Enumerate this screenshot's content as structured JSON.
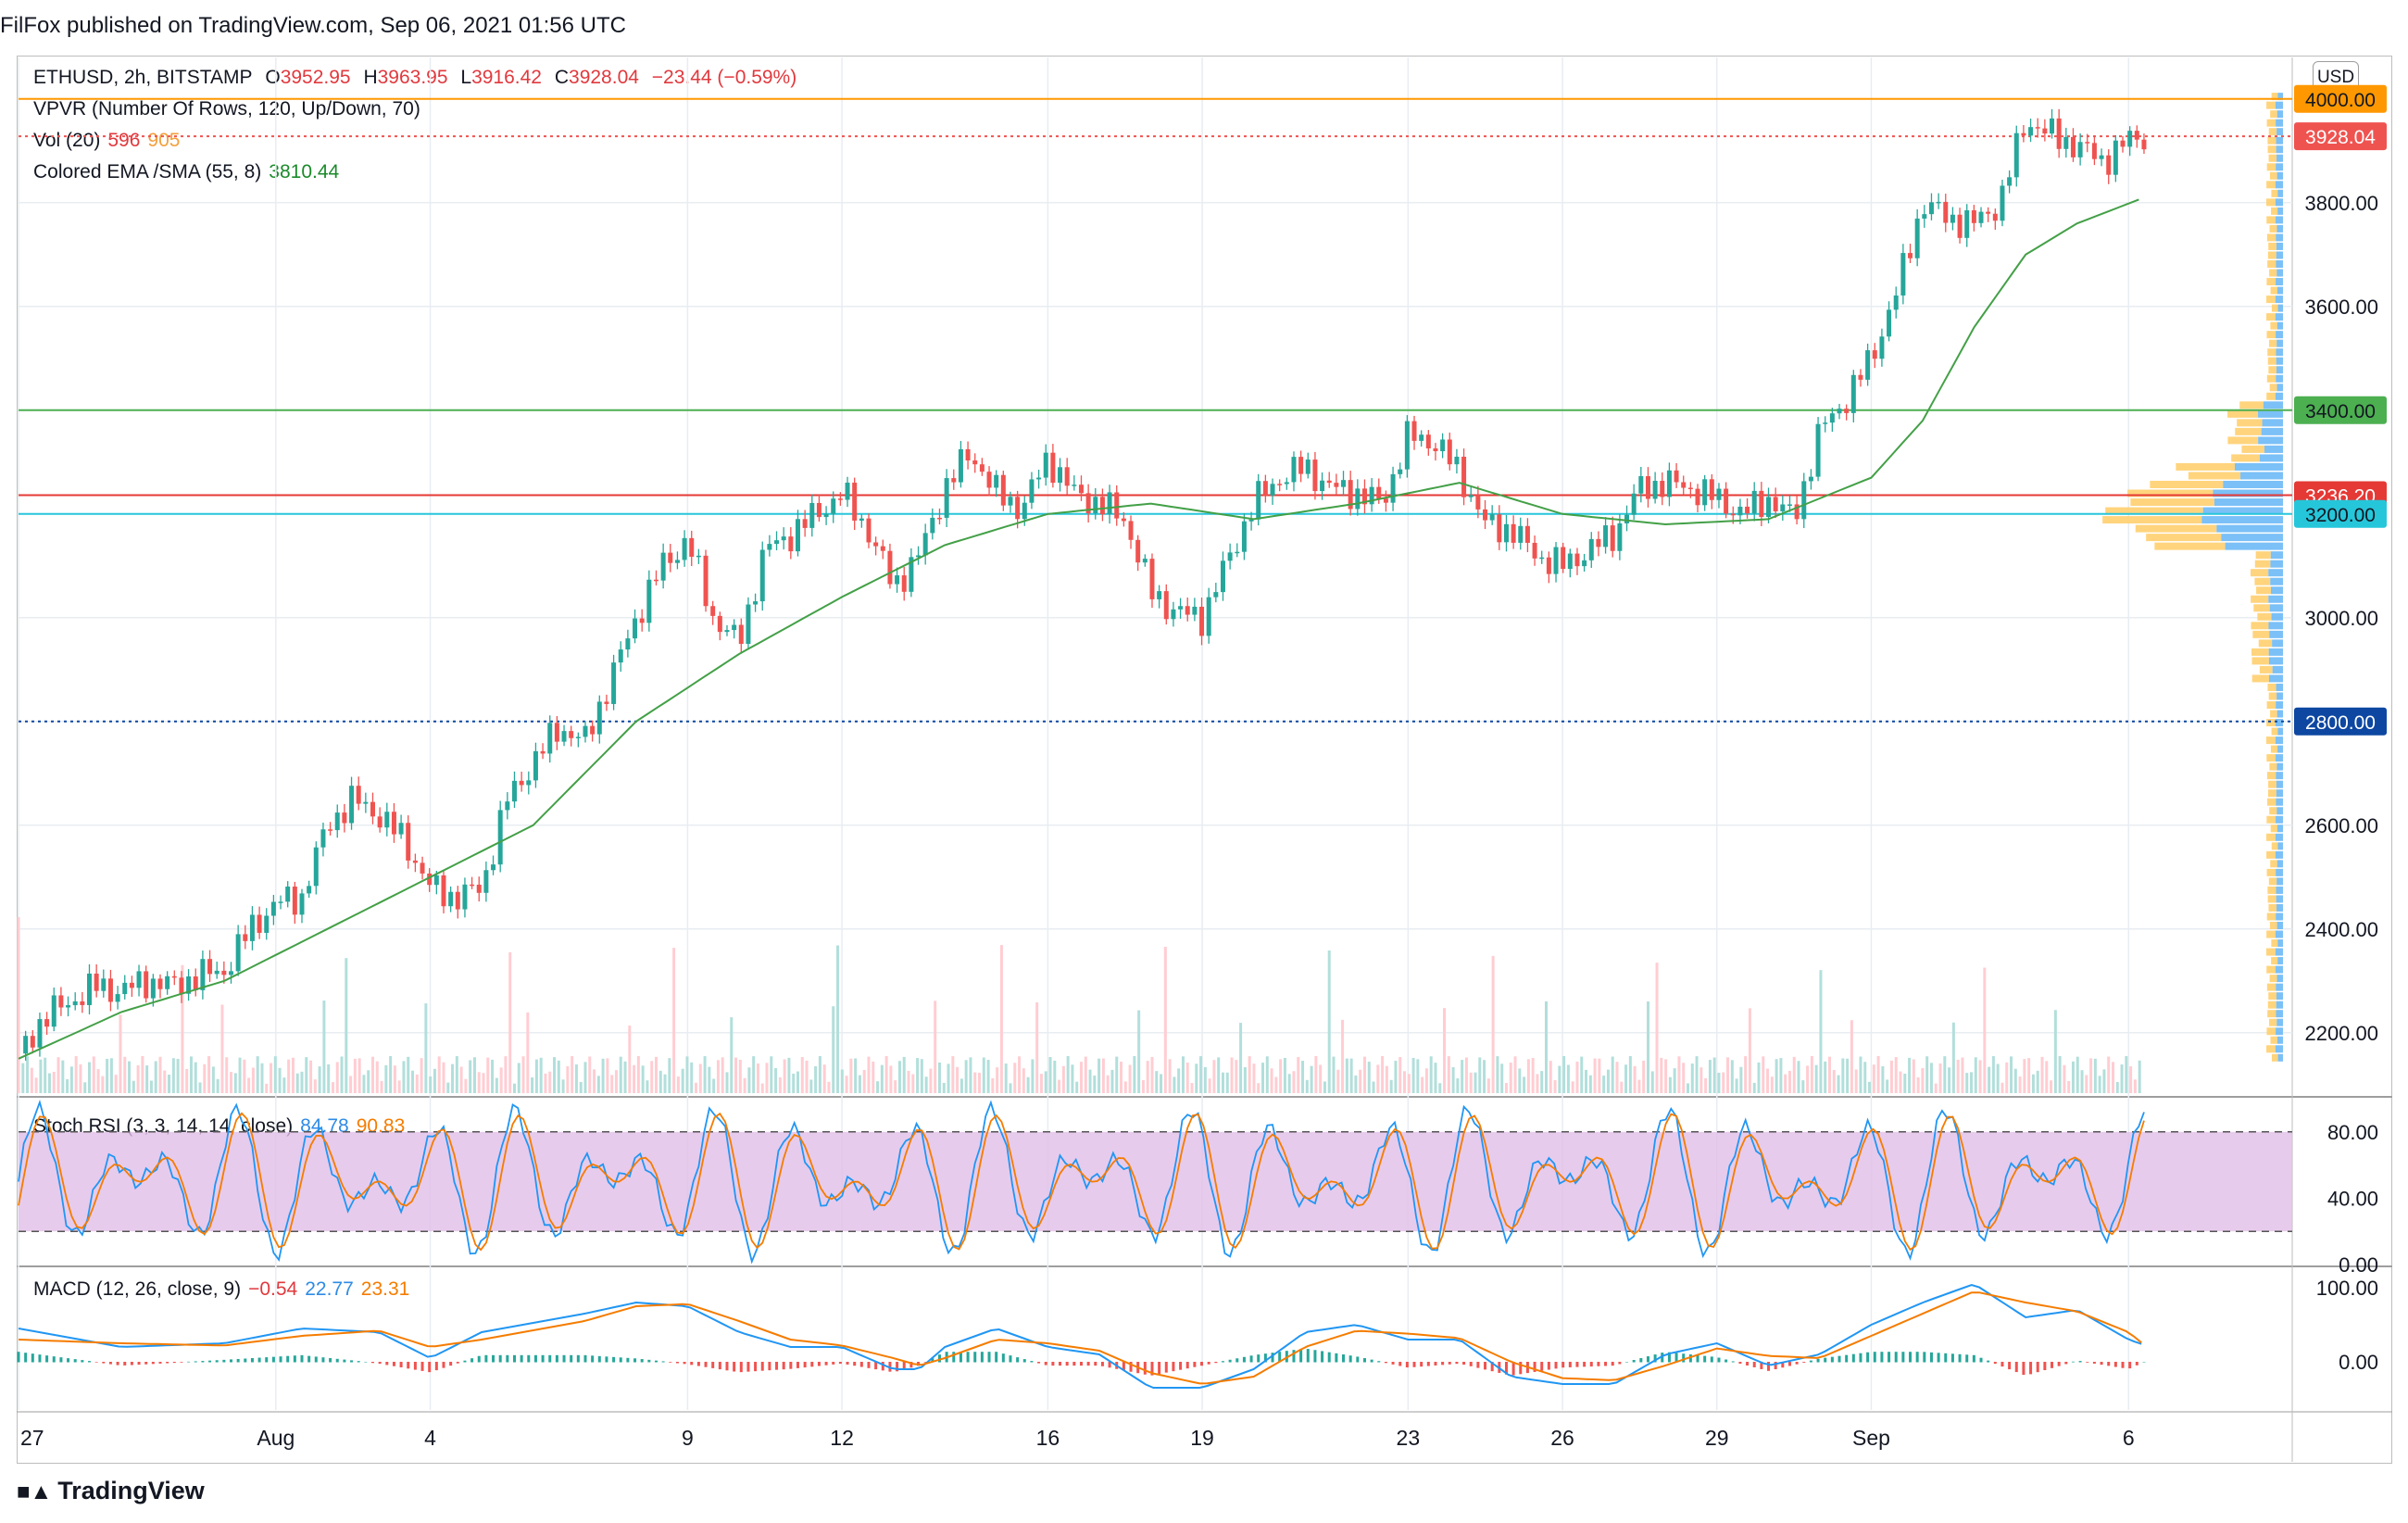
{
  "header": {
    "published": "FilFox published on TradingView.com, Sep 06, 2021 01:56 UTC"
  },
  "legend": {
    "symbol": "ETHUSD, 2h, BITSTAMP",
    "o_label": "O",
    "o": "3952.95",
    "h_label": "H",
    "h": "3963.95",
    "l_label": "L",
    "l": "3916.42",
    "c_label": "C",
    "c": "3928.04",
    "change": "−23.44 (−0.59%)",
    "vpvr": "VPVR (Number Of Rows, 120, Up/Down, 70)",
    "vol_label": "Vol (20)",
    "vol1": "596",
    "vol2": "905",
    "ema_label": "Colored EMA /SMA (55, 8)",
    "ema_value": "3810.44",
    "stoch_label": "Stoch RSI (3, 3, 14, 14, close)",
    "stoch_k": "84.78",
    "stoch_d": "90.83",
    "macd_label": "MACD (12, 26, close, 9)",
    "macd_hist": "−0.54",
    "macd_line": "22.77",
    "macd_signal": "23.31"
  },
  "currency": "USD",
  "price_badges": [
    {
      "label": "4000.00",
      "value": 4000,
      "color": "#ff9800",
      "text_color": "#131722"
    },
    {
      "label": "3928.04",
      "value": 3928.04,
      "color": "#ef5350",
      "text_color": "#ffffff"
    },
    {
      "label": "3400.00",
      "value": 3400,
      "color": "#4caf50",
      "text_color": "#131722"
    },
    {
      "label": "3236.20",
      "value": 3236.2,
      "color": "#e53935",
      "text_color": "#ffffff"
    },
    {
      "label": "3200.00",
      "value": 3200,
      "color": "#26c6da",
      "text_color": "#131722"
    },
    {
      "label": "2800.00",
      "value": 2800,
      "color": "#0d47a1",
      "text_color": "#ffffff"
    }
  ],
  "footer": {
    "brand": "TradingView"
  },
  "chart_data": [
    {
      "type": "candlestick",
      "title": "ETHUSD, 2h, BITSTAMP",
      "x_tick_labels": [
        "27",
        "Aug",
        "4",
        "9",
        "12",
        "16",
        "19",
        "23",
        "26",
        "29",
        "Sep",
        "6"
      ],
      "x_tick_days": [
        0,
        5,
        8,
        13,
        16,
        20,
        23,
        27,
        30,
        33,
        36,
        41
      ],
      "y_tick_labels": [
        "2200.00",
        "2400.00",
        "2600.00",
        "2800.00",
        "3000.00",
        "3200.00",
        "3400.00",
        "3600.00",
        "3800.00",
        "4000.00"
      ],
      "ylim": [
        2080,
        4080
      ],
      "horizontal_lines": [
        {
          "value": 4000,
          "color": "#ff9800",
          "style": "solid"
        },
        {
          "value": 3928.04,
          "color": "#ef5350",
          "style": "dotted"
        },
        {
          "value": 3400,
          "color": "#4caf50",
          "style": "solid"
        },
        {
          "value": 3236.2,
          "color": "#e53935",
          "style": "solid"
        },
        {
          "value": 3200,
          "color": "#26c6da",
          "style": "solid"
        },
        {
          "value": 2800,
          "color": "#0d47a1",
          "style": "dotted"
        }
      ],
      "close_path": [
        [
          0,
          2160
        ],
        [
          0.5,
          2230
        ],
        [
          1,
          2260
        ],
        [
          1.5,
          2290
        ],
        [
          2,
          2280
        ],
        [
          2.5,
          2300
        ],
        [
          3,
          2290
        ],
        [
          3.5,
          2310
        ],
        [
          4,
          2320
        ],
        [
          4.5,
          2400
        ],
        [
          5,
          2450
        ],
        [
          5.5,
          2460
        ],
        [
          6,
          2600
        ],
        [
          6.5,
          2650
        ],
        [
          7,
          2620
        ],
        [
          7.5,
          2570
        ],
        [
          8,
          2480
        ],
        [
          8.5,
          2460
        ],
        [
          9,
          2480
        ],
        [
          9.5,
          2650
        ],
        [
          10,
          2720
        ],
        [
          10.5,
          2790
        ],
        [
          11,
          2760
        ],
        [
          11.5,
          2880
        ],
        [
          12,
          3000
        ],
        [
          12.5,
          3100
        ],
        [
          13,
          3150
        ],
        [
          13.5,
          3000
        ],
        [
          14,
          2950
        ],
        [
          14.5,
          3130
        ],
        [
          15,
          3160
        ],
        [
          15.5,
          3200
        ],
        [
          16,
          3240
        ],
        [
          16.5,
          3170
        ],
        [
          17,
          3060
        ],
        [
          17.5,
          3120
        ],
        [
          18,
          3250
        ],
        [
          18.5,
          3320
        ],
        [
          19,
          3240
        ],
        [
          19.5,
          3210
        ],
        [
          20,
          3310
        ],
        [
          20.5,
          3240
        ],
        [
          21,
          3220
        ],
        [
          21.5,
          3190
        ],
        [
          22,
          3050
        ],
        [
          22.5,
          3010
        ],
        [
          23,
          3000
        ],
        [
          23.5,
          3110
        ],
        [
          24,
          3220
        ],
        [
          24.5,
          3270
        ],
        [
          25,
          3290
        ],
        [
          25.5,
          3250
        ],
        [
          26,
          3240
        ],
        [
          26.5,
          3220
        ],
        [
          27,
          3350
        ],
        [
          27.5,
          3340
        ],
        [
          28,
          3280
        ],
        [
          28.5,
          3180
        ],
        [
          29,
          3170
        ],
        [
          29.5,
          3120
        ],
        [
          30,
          3100
        ],
        [
          30.5,
          3130
        ],
        [
          31,
          3160
        ],
        [
          31.5,
          3250
        ],
        [
          32,
          3260
        ],
        [
          32.5,
          3250
        ],
        [
          33,
          3230
        ],
        [
          33.5,
          3200
        ],
        [
          34,
          3230
        ],
        [
          34.5,
          3190
        ],
        [
          35,
          3360
        ],
        [
          35.5,
          3420
        ],
        [
          36,
          3500
        ],
        [
          36.5,
          3630
        ],
        [
          37,
          3800
        ],
        [
          37.5,
          3770
        ],
        [
          38,
          3760
        ],
        [
          38.5,
          3800
        ],
        [
          39,
          3960
        ],
        [
          39.5,
          3930
        ],
        [
          40,
          3910
        ],
        [
          40.5,
          3880
        ],
        [
          41,
          3920
        ],
        [
          41.3,
          3928
        ]
      ],
      "ema_path": [
        [
          0,
          2150
        ],
        [
          2,
          2240
        ],
        [
          4,
          2300
        ],
        [
          6,
          2400
        ],
        [
          8,
          2500
        ],
        [
          10,
          2600
        ],
        [
          12,
          2800
        ],
        [
          14,
          2930
        ],
        [
          16,
          3040
        ],
        [
          18,
          3140
        ],
        [
          20,
          3200
        ],
        [
          22,
          3220
        ],
        [
          24,
          3190
        ],
        [
          26,
          3220
        ],
        [
          28,
          3260
        ],
        [
          30,
          3200
        ],
        [
          32,
          3180
        ],
        [
          34,
          3190
        ],
        [
          36,
          3270
        ],
        [
          37,
          3380
        ],
        [
          38,
          3560
        ],
        [
          39,
          3700
        ],
        [
          40,
          3760
        ],
        [
          41.3,
          3810
        ]
      ],
      "volume_note": "Vol (20) values 596 / 905"
    },
    {
      "type": "line",
      "title": "Stoch RSI (3, 3, 14, 14, close)",
      "series": [
        {
          "name": "K",
          "last": 84.78
        },
        {
          "name": "D",
          "last": 90.83
        }
      ],
      "band": [
        20,
        80
      ],
      "y_tick_labels": [
        "80.00",
        "40.00",
        "0.00"
      ],
      "ylim": [
        0,
        100
      ]
    },
    {
      "type": "line",
      "title": "MACD (12, 26, close, 9)",
      "series": [
        {
          "name": "Histogram",
          "last": -0.54
        },
        {
          "name": "MACD",
          "last": 22.77
        },
        {
          "name": "Signal",
          "last": 23.31
        }
      ],
      "y_tick_labels": [
        "100.00",
        "0.00"
      ],
      "macd_path": [
        [
          0,
          45
        ],
        [
          2,
          20
        ],
        [
          4,
          25
        ],
        [
          5.5,
          45
        ],
        [
          7,
          40
        ],
        [
          8,
          5
        ],
        [
          9,
          40
        ],
        [
          11,
          65
        ],
        [
          12,
          80
        ],
        [
          13,
          75
        ],
        [
          14,
          40
        ],
        [
          15,
          20
        ],
        [
          16,
          20
        ],
        [
          17,
          -10
        ],
        [
          17.5,
          -10
        ],
        [
          18,
          20
        ],
        [
          19,
          45
        ],
        [
          20,
          20
        ],
        [
          21,
          10
        ],
        [
          22,
          -35
        ],
        [
          23,
          -35
        ],
        [
          24,
          -10
        ],
        [
          25,
          40
        ],
        [
          26,
          50
        ],
        [
          27,
          30
        ],
        [
          28,
          30
        ],
        [
          29,
          -20
        ],
        [
          30,
          -30
        ],
        [
          31,
          -30
        ],
        [
          32,
          10
        ],
        [
          33,
          25
        ],
        [
          34,
          -5
        ],
        [
          35,
          10
        ],
        [
          36,
          50
        ],
        [
          37,
          80
        ],
        [
          38,
          105
        ],
        [
          39,
          60
        ],
        [
          40,
          70
        ],
        [
          41,
          30
        ],
        [
          41.3,
          23
        ]
      ],
      "signal_path": [
        [
          0,
          30
        ],
        [
          2,
          25
        ],
        [
          4,
          22
        ],
        [
          5.5,
          35
        ],
        [
          7,
          42
        ],
        [
          8,
          20
        ],
        [
          9,
          30
        ],
        [
          11,
          55
        ],
        [
          12,
          75
        ],
        [
          13,
          78
        ],
        [
          14,
          55
        ],
        [
          15,
          30
        ],
        [
          16,
          22
        ],
        [
          17,
          5
        ],
        [
          17.5,
          -5
        ],
        [
          18,
          5
        ],
        [
          19,
          30
        ],
        [
          20,
          25
        ],
        [
          21,
          15
        ],
        [
          22,
          -15
        ],
        [
          23,
          -30
        ],
        [
          24,
          -20
        ],
        [
          25,
          20
        ],
        [
          26,
          42
        ],
        [
          27,
          38
        ],
        [
          28,
          32
        ],
        [
          29,
          0
        ],
        [
          30,
          -22
        ],
        [
          31,
          -25
        ],
        [
          32,
          -5
        ],
        [
          33,
          18
        ],
        [
          34,
          8
        ],
        [
          35,
          5
        ],
        [
          36,
          35
        ],
        [
          37,
          65
        ],
        [
          38,
          95
        ],
        [
          39,
          80
        ],
        [
          40,
          68
        ],
        [
          41,
          40
        ],
        [
          41.3,
          23
        ]
      ]
    }
  ]
}
